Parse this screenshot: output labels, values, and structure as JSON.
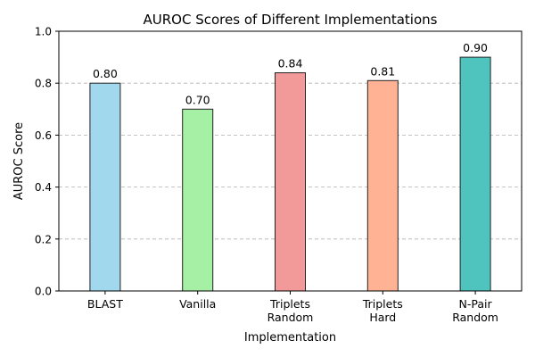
{
  "chart_data": {
    "type": "bar",
    "title": "AUROC Scores of Different Implementations",
    "xlabel": "Implementation",
    "ylabel": "AUROC Score",
    "categories": [
      [
        "BLAST"
      ],
      [
        "Vanilla"
      ],
      [
        "Triplets",
        "Random"
      ],
      [
        "Triplets",
        "Hard"
      ],
      [
        "N-Pair",
        "Random"
      ]
    ],
    "values": [
      0.8,
      0.7,
      0.84,
      0.81,
      0.9
    ],
    "value_labels": [
      "0.80",
      "0.70",
      "0.84",
      "0.81",
      "0.90"
    ],
    "colors": [
      "#a2d8ee",
      "#a6f0a6",
      "#f29a9a",
      "#ffb394",
      "#4fc4bf"
    ],
    "ylim": [
      0,
      1.0
    ],
    "yticks": [
      0.0,
      0.2,
      0.4,
      0.6,
      0.8,
      1.0
    ],
    "ytick_labels": [
      "0.0",
      "0.2",
      "0.4",
      "0.6",
      "0.8",
      "1.0"
    ],
    "grid": "y-dashed",
    "legend": "none"
  }
}
